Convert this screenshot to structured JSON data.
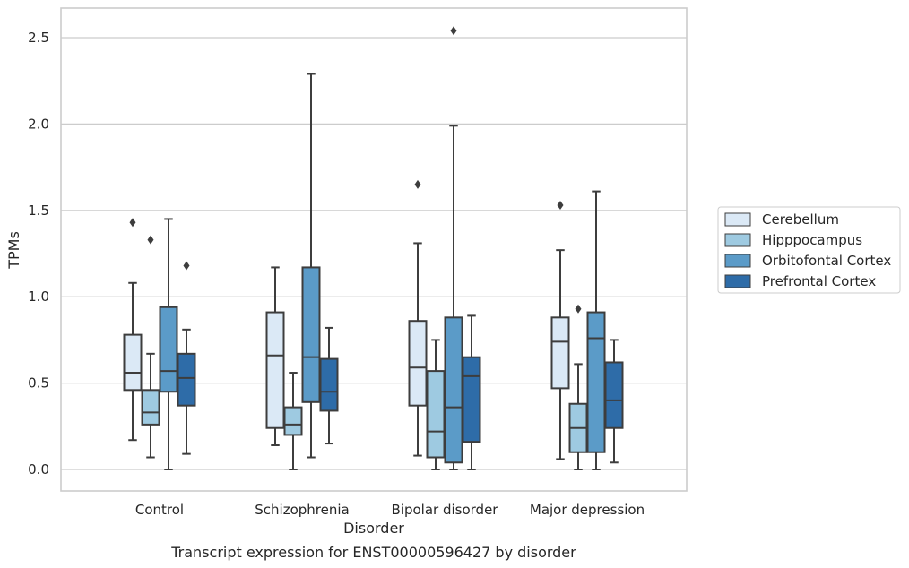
{
  "chart_data": {
    "type": "box",
    "title": "",
    "caption": "Transcript expression for ENST00000596427 by disorder",
    "xlabel": "Disorder",
    "ylabel": "TPMs",
    "ylim": [
      -0.12,
      2.67
    ],
    "yticks": [
      "0.0",
      "0.5",
      "1.0",
      "1.5",
      "2.0",
      "2.5"
    ],
    "grid": "horizontal",
    "legend_position": "right",
    "categories": [
      "Control",
      "Schizophrenia",
      "Bipolar disorder",
      "Major depression"
    ],
    "series": [
      {
        "name": "Cerebellum",
        "color": "#dbe9f6",
        "boxes": [
          {
            "whisker_low": 0.17,
            "q1": 0.46,
            "median": 0.56,
            "q3": 0.78,
            "whisker_high": 1.08,
            "outliers": [
              1.43
            ]
          },
          {
            "whisker_low": 0.14,
            "q1": 0.24,
            "median": 0.66,
            "q3": 0.91,
            "whisker_high": 1.17,
            "outliers": []
          },
          {
            "whisker_low": 0.08,
            "q1": 0.37,
            "median": 0.59,
            "q3": 0.86,
            "whisker_high": 1.31,
            "outliers": [
              1.65
            ]
          },
          {
            "whisker_low": 0.06,
            "q1": 0.47,
            "median": 0.74,
            "q3": 0.88,
            "whisker_high": 1.27,
            "outliers": [
              1.53
            ]
          }
        ]
      },
      {
        "name": "Hipppocampus",
        "color": "#9ecae1",
        "boxes": [
          {
            "whisker_low": 0.07,
            "q1": 0.26,
            "median": 0.33,
            "q3": 0.46,
            "whisker_high": 0.67,
            "outliers": [
              1.33
            ]
          },
          {
            "whisker_low": 0.0,
            "q1": 0.2,
            "median": 0.26,
            "q3": 0.36,
            "whisker_high": 0.56,
            "outliers": []
          },
          {
            "whisker_low": 0.0,
            "q1": 0.07,
            "median": 0.22,
            "q3": 0.57,
            "whisker_high": 0.75,
            "outliers": []
          },
          {
            "whisker_low": 0.0,
            "q1": 0.1,
            "median": 0.24,
            "q3": 0.38,
            "whisker_high": 0.61,
            "outliers": [
              0.93
            ]
          }
        ]
      },
      {
        "name": "Orbitofontal Cortex",
        "color": "#5b9bc8",
        "boxes": [
          {
            "whisker_low": 0.0,
            "q1": 0.45,
            "median": 0.57,
            "q3": 0.94,
            "whisker_high": 1.45,
            "outliers": []
          },
          {
            "whisker_low": 0.07,
            "q1": 0.39,
            "median": 0.65,
            "q3": 1.17,
            "whisker_high": 2.29,
            "outliers": []
          },
          {
            "whisker_low": 0.0,
            "q1": 0.04,
            "median": 0.36,
            "q3": 0.88,
            "whisker_high": 1.99,
            "outliers": [
              2.54
            ]
          },
          {
            "whisker_low": 0.0,
            "q1": 0.1,
            "median": 0.76,
            "q3": 0.91,
            "whisker_high": 1.61,
            "outliers": []
          }
        ]
      },
      {
        "name": "Prefrontal Cortex",
        "color": "#2e6ca8",
        "boxes": [
          {
            "whisker_low": 0.09,
            "q1": 0.37,
            "median": 0.53,
            "q3": 0.67,
            "whisker_high": 0.81,
            "outliers": [
              1.18
            ]
          },
          {
            "whisker_low": 0.15,
            "q1": 0.34,
            "median": 0.45,
            "q3": 0.64,
            "whisker_high": 0.82,
            "outliers": []
          },
          {
            "whisker_low": 0.0,
            "q1": 0.16,
            "median": 0.54,
            "q3": 0.65,
            "whisker_high": 0.89,
            "outliers": []
          },
          {
            "whisker_low": 0.04,
            "q1": 0.24,
            "median": 0.4,
            "q3": 0.62,
            "whisker_high": 0.75,
            "outliers": []
          }
        ]
      }
    ]
  }
}
